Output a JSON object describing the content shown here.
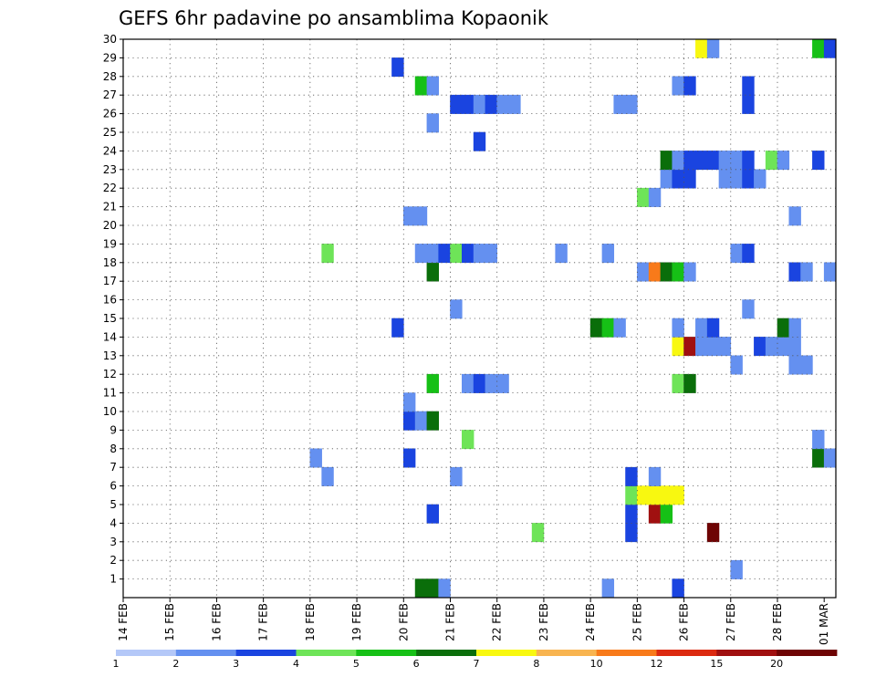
{
  "chart_data": {
    "type": "heatmap",
    "title": "GEFS 6hr padavine po ansamblima Kopaonik",
    "x_ticks": [
      "14 FEB",
      "15 FEB",
      "16 FEB",
      "17 FEB",
      "18 FEB",
      "19 FEB",
      "20 FEB",
      "21 FEB",
      "22 FEB",
      "23 FEB",
      "24 FEB",
      "25 FEB",
      "26 FEB",
      "27 FEB",
      "28 FEB",
      "01 MAR"
    ],
    "y_ticks": [
      1,
      2,
      3,
      4,
      5,
      6,
      7,
      8,
      9,
      10,
      11,
      12,
      13,
      14,
      15,
      16,
      17,
      18,
      19,
      20,
      21,
      22,
      23,
      24,
      25,
      26,
      27,
      28,
      29,
      30
    ],
    "ylim": [
      0,
      30
    ],
    "time_step_hours": 6,
    "grid": true,
    "colorbar": {
      "labels": [
        "1",
        "2",
        "3",
        "4",
        "5",
        "6",
        "7",
        "8",
        "10",
        "12",
        "15",
        "20"
      ],
      "colors": [
        "#b4c8f8",
        "#6490f0",
        "#1a44e0",
        "#6ee458",
        "#16c016",
        "#0a6e0a",
        "#f8f810",
        "#f8b450",
        "#f87a1a",
        "#dc2a10",
        "#a01010",
        "#6e0404"
      ]
    },
    "cells": [
      [
        0,
        25,
        5
      ],
      [
        0,
        26,
        5
      ],
      [
        0,
        27,
        1
      ],
      [
        0,
        41,
        1
      ],
      [
        0,
        47,
        2
      ],
      [
        1,
        52,
        1
      ],
      [
        3,
        35,
        3
      ],
      [
        3,
        43,
        2
      ],
      [
        3,
        50,
        11
      ],
      [
        4,
        26,
        2
      ],
      [
        4,
        43,
        2
      ],
      [
        4,
        45,
        10
      ],
      [
        4,
        46,
        4
      ],
      [
        5,
        43,
        3
      ],
      [
        5,
        44,
        6
      ],
      [
        5,
        45,
        6
      ],
      [
        5,
        46,
        6
      ],
      [
        5,
        47,
        6
      ],
      [
        6,
        17,
        1
      ],
      [
        6,
        28,
        1
      ],
      [
        6,
        43,
        2
      ],
      [
        6,
        45,
        1
      ],
      [
        7,
        16,
        1
      ],
      [
        7,
        24,
        2
      ],
      [
        7,
        59,
        5
      ],
      [
        7,
        60,
        1
      ],
      [
        8,
        29,
        3
      ],
      [
        8,
        59,
        1
      ],
      [
        9,
        24,
        2
      ],
      [
        9,
        25,
        1
      ],
      [
        9,
        26,
        5
      ],
      [
        10,
        24,
        1
      ],
      [
        11,
        26,
        4
      ],
      [
        11,
        29,
        1
      ],
      [
        11,
        30,
        2
      ],
      [
        11,
        31,
        1
      ],
      [
        11,
        32,
        1
      ],
      [
        11,
        47,
        3
      ],
      [
        11,
        48,
        5
      ],
      [
        12,
        52,
        1
      ],
      [
        12,
        57,
        1
      ],
      [
        12,
        58,
        1
      ],
      [
        13,
        47,
        6
      ],
      [
        13,
        48,
        10
      ],
      [
        13,
        49,
        1
      ],
      [
        13,
        50,
        1
      ],
      [
        13,
        51,
        1
      ],
      [
        13,
        54,
        2
      ],
      [
        13,
        55,
        1
      ],
      [
        13,
        56,
        1
      ],
      [
        13,
        57,
        1
      ],
      [
        14,
        23,
        2
      ],
      [
        14,
        40,
        5
      ],
      [
        14,
        41,
        4
      ],
      [
        14,
        42,
        1
      ],
      [
        14,
        47,
        1
      ],
      [
        14,
        49,
        1
      ],
      [
        14,
        50,
        2
      ],
      [
        14,
        56,
        5
      ],
      [
        14,
        57,
        1
      ],
      [
        15,
        28,
        1
      ],
      [
        15,
        53,
        1
      ],
      [
        17,
        26,
        5
      ],
      [
        17,
        44,
        1
      ],
      [
        17,
        45,
        8
      ],
      [
        17,
        46,
        5
      ],
      [
        17,
        47,
        4
      ],
      [
        17,
        48,
        1
      ],
      [
        17,
        57,
        2
      ],
      [
        17,
        58,
        1
      ],
      [
        17,
        60,
        1
      ],
      [
        18,
        17,
        3
      ],
      [
        18,
        25,
        1
      ],
      [
        18,
        26,
        1
      ],
      [
        18,
        27,
        2
      ],
      [
        18,
        28,
        3
      ],
      [
        18,
        29,
        2
      ],
      [
        18,
        30,
        1
      ],
      [
        18,
        31,
        1
      ],
      [
        18,
        37,
        1
      ],
      [
        18,
        41,
        1
      ],
      [
        18,
        52,
        1
      ],
      [
        18,
        53,
        2
      ],
      [
        20,
        24,
        1
      ],
      [
        20,
        25,
        1
      ],
      [
        20,
        57,
        1
      ],
      [
        21,
        44,
        3
      ],
      [
        21,
        45,
        1
      ],
      [
        22,
        46,
        1
      ],
      [
        22,
        47,
        2
      ],
      [
        22,
        48,
        2
      ],
      [
        22,
        51,
        1
      ],
      [
        22,
        52,
        1
      ],
      [
        22,
        53,
        2
      ],
      [
        22,
        54,
        1
      ],
      [
        23,
        46,
        5
      ],
      [
        23,
        47,
        1
      ],
      [
        23,
        48,
        2
      ],
      [
        23,
        49,
        2
      ],
      [
        23,
        50,
        2
      ],
      [
        23,
        51,
        1
      ],
      [
        23,
        52,
        1
      ],
      [
        23,
        53,
        2
      ],
      [
        23,
        55,
        3
      ],
      [
        23,
        56,
        1
      ],
      [
        23,
        59,
        2
      ],
      [
        24,
        30,
        2
      ],
      [
        25,
        26,
        1
      ],
      [
        26,
        28,
        2
      ],
      [
        26,
        29,
        2
      ],
      [
        26,
        30,
        1
      ],
      [
        26,
        31,
        2
      ],
      [
        26,
        32,
        1
      ],
      [
        26,
        33,
        1
      ],
      [
        26,
        42,
        1
      ],
      [
        26,
        43,
        1
      ],
      [
        26,
        53,
        2
      ],
      [
        27,
        25,
        4
      ],
      [
        27,
        26,
        1
      ],
      [
        27,
        47,
        1
      ],
      [
        27,
        48,
        2
      ],
      [
        27,
        53,
        2
      ],
      [
        28,
        23,
        2
      ],
      [
        29,
        49,
        6
      ],
      [
        29,
        50,
        1
      ],
      [
        29,
        59,
        4
      ],
      [
        29,
        60,
        2
      ]
    ]
  }
}
